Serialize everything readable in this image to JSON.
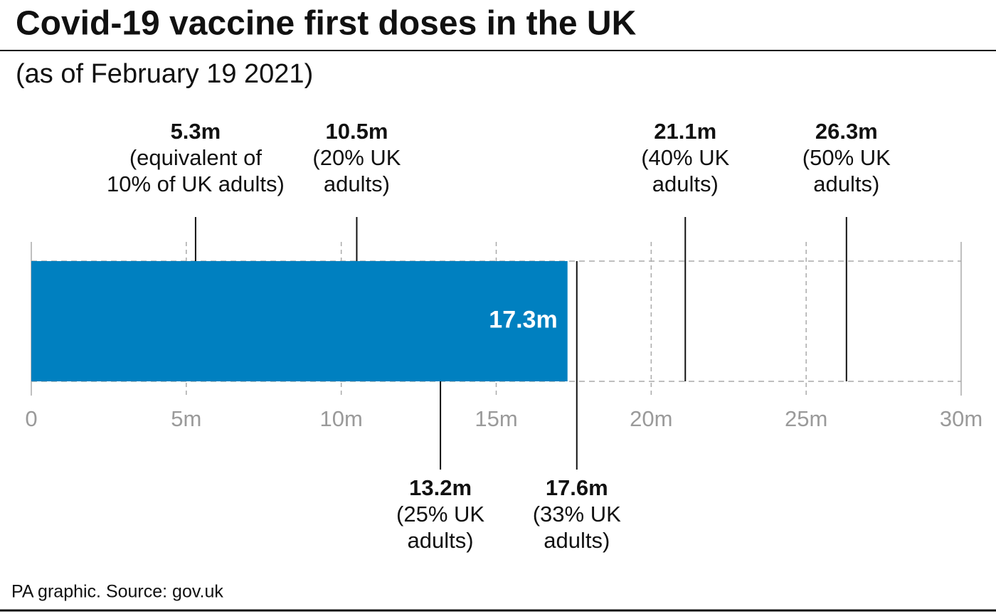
{
  "chart_data": {
    "type": "bar",
    "title": "Covid-19 vaccine first doses in the UK",
    "subtitle": "(as of February 19 2021)",
    "source": "PA graphic. Source: gov.uk",
    "values": [
      17.3
    ],
    "value_labels": [
      "17.3m"
    ],
    "color": "#0080c0",
    "xlim": [
      0,
      30
    ],
    "xticks": [
      0,
      {
        "value": 5,
        "label": "5m"
      },
      {
        "value": 10,
        "label": "10m"
      },
      {
        "value": 15,
        "label": "15m"
      },
      {
        "value": 20,
        "label": "20m"
      },
      {
        "value": 25,
        "label": "25m"
      },
      {
        "value": 30,
        "label": "30m"
      }
    ],
    "grid": true,
    "markers": {
      "top": [
        {
          "value": 5.3,
          "label": "5.3m",
          "note": [
            "(equivalent of",
            "10% of UK adults)"
          ]
        },
        {
          "value": 10.5,
          "label": "10.5m",
          "note": [
            "(20% UK",
            "adults)"
          ]
        },
        {
          "value": 21.1,
          "label": "21.1m",
          "note": [
            "(40% UK",
            "adults)"
          ]
        },
        {
          "value": 26.3,
          "label": "26.3m",
          "note": [
            "(50% UK",
            "adults)"
          ]
        }
      ],
      "bottom": [
        {
          "value": 13.2,
          "label": "13.2m",
          "note": [
            "(25% UK",
            "adults)"
          ]
        },
        {
          "value": 17.6,
          "label": "17.6m",
          "note": [
            "(33% UK",
            "adults)"
          ]
        }
      ]
    }
  }
}
